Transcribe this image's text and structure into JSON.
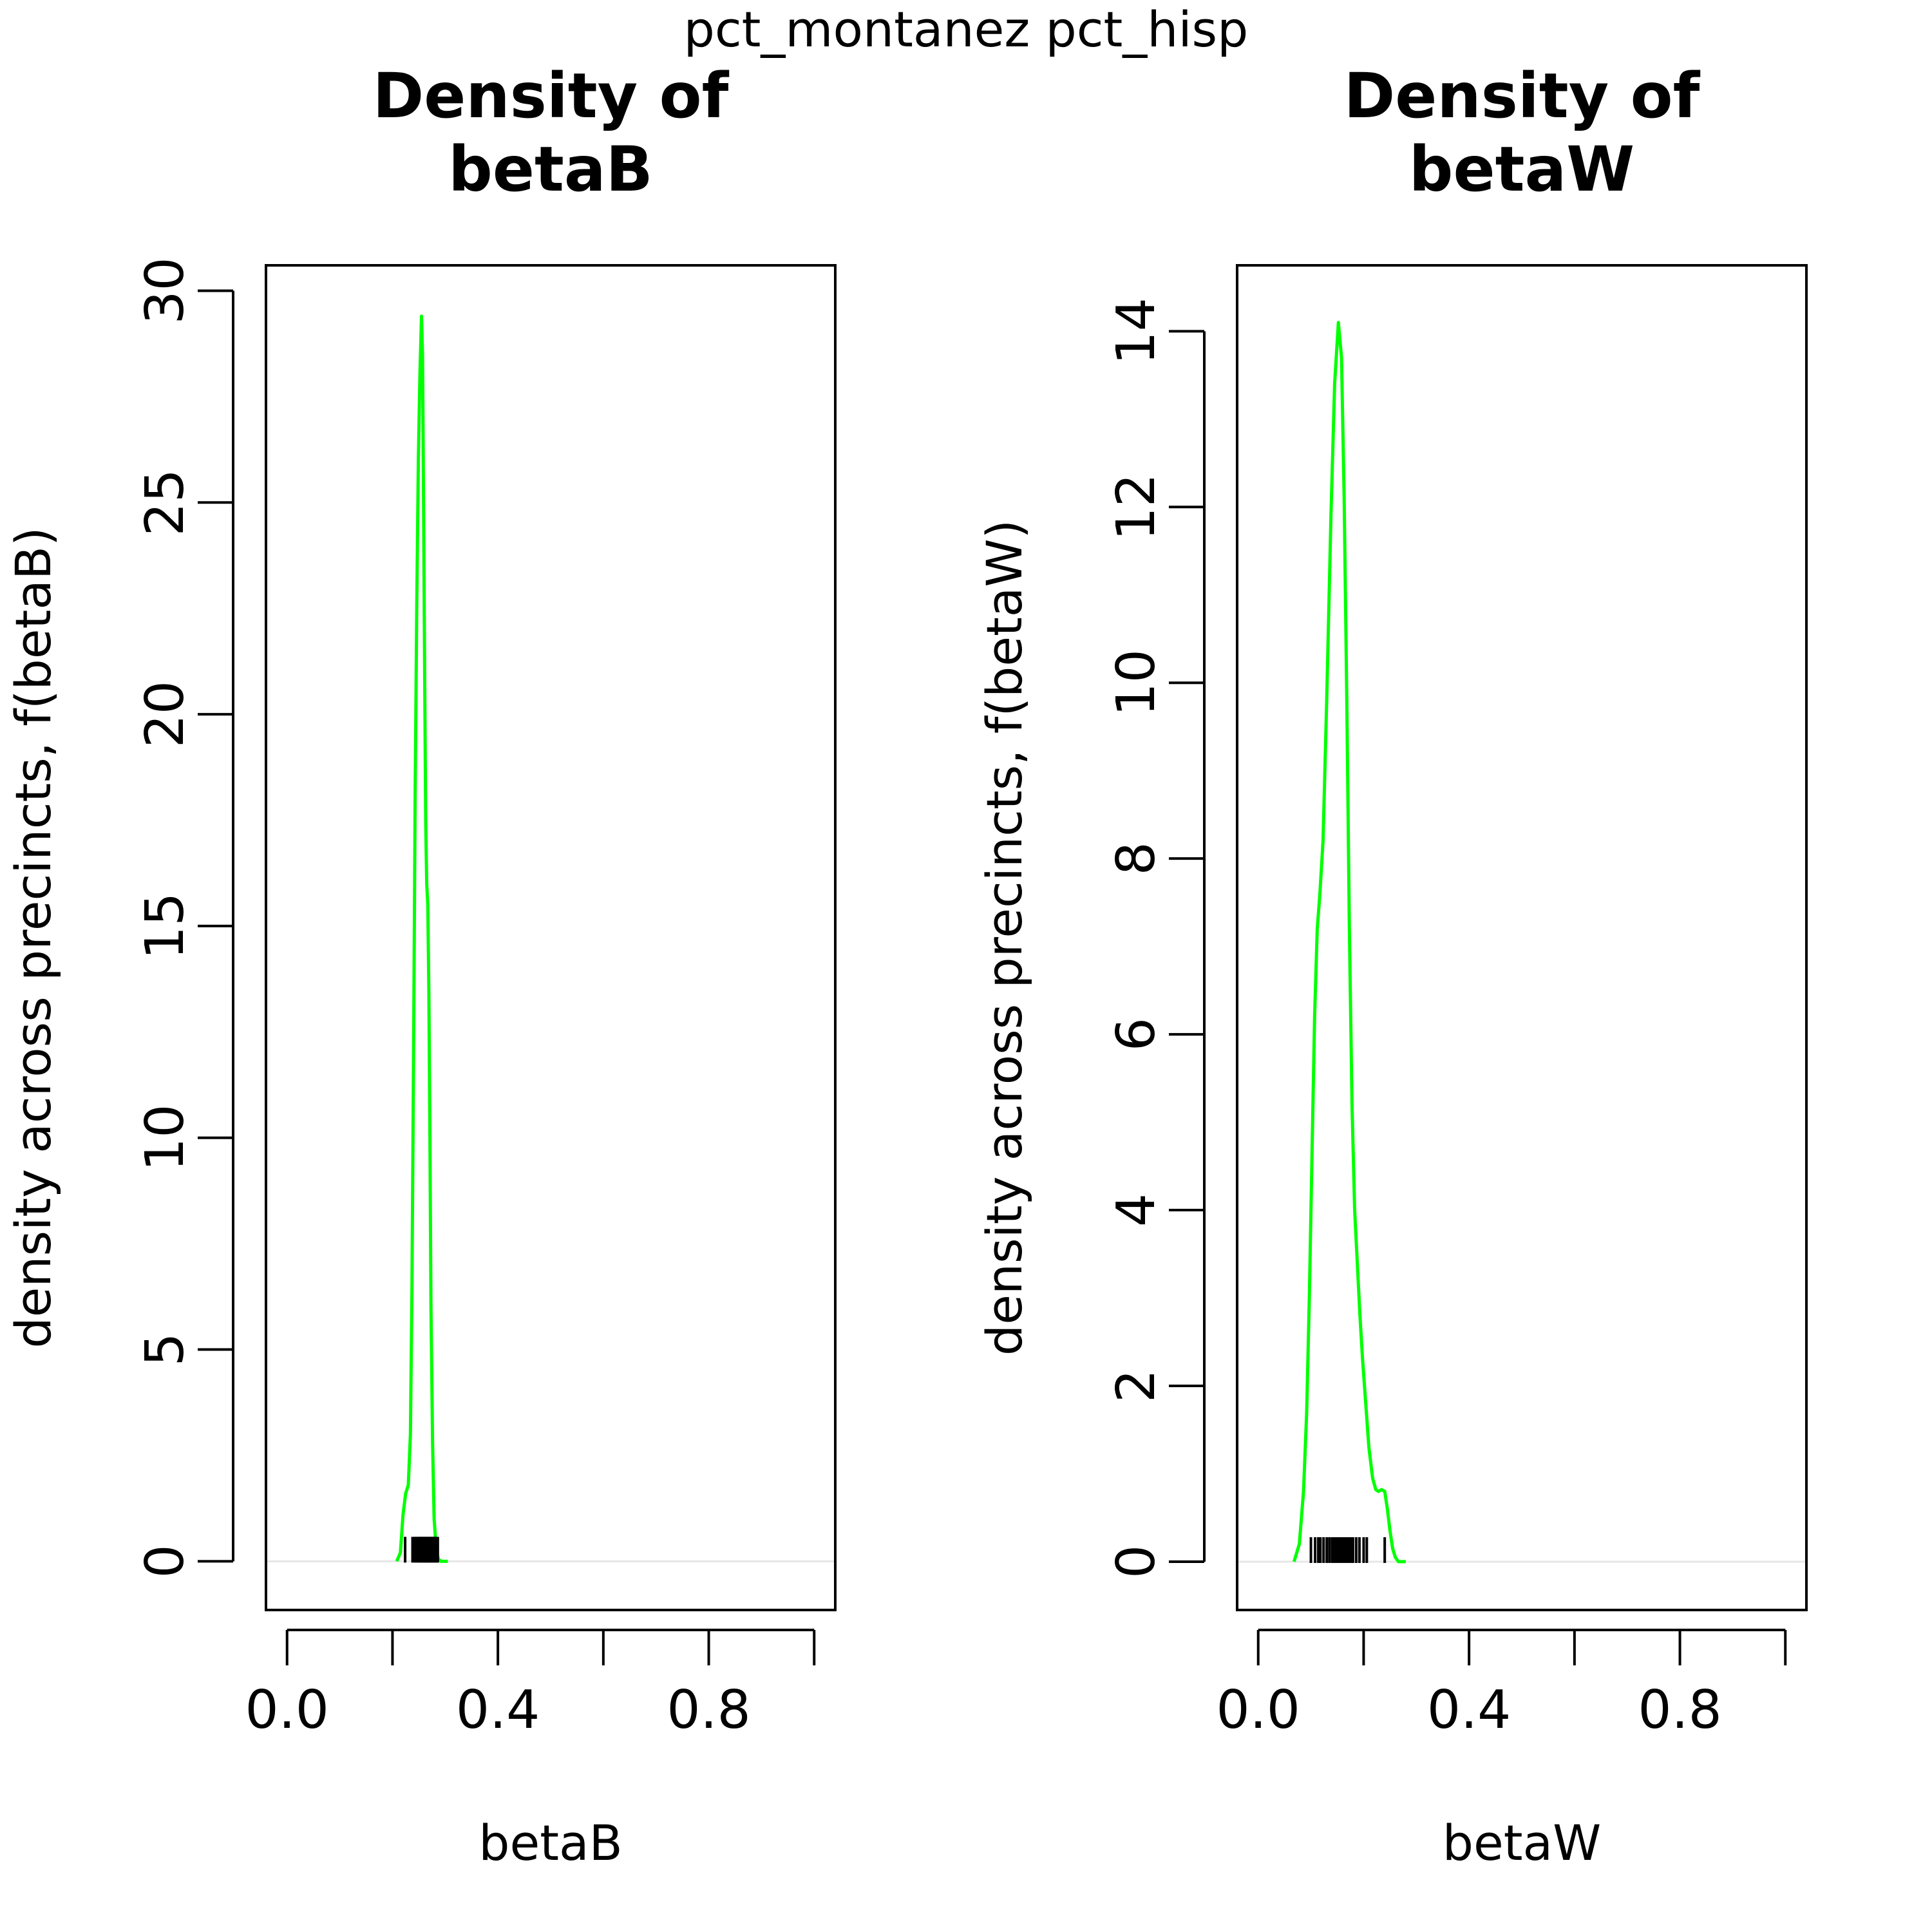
{
  "suptitle": "pct_montanez pct_hisp",
  "colors": {
    "curve": "#00ff00",
    "axis": "#000000",
    "zero_line": "#e6e6e6",
    "background": "#ffffff"
  },
  "chart_data": [
    {
      "type": "line",
      "title_line1": "Density of",
      "title_line2": "betaB",
      "xlabel": "betaB",
      "ylabel": "density across precincts, f(betaB)",
      "xlim": [
        -0.04,
        1.04
      ],
      "ylim": [
        -1.15,
        30.6
      ],
      "xticks": [
        0,
        0.2,
        0.4,
        0.6,
        0.8,
        1.0
      ],
      "xtick_labels": [
        "0.0",
        "0.4",
        "0.8"
      ],
      "xtick_label_values": [
        0,
        0.4,
        0.8
      ],
      "yticks": [
        0,
        5,
        10,
        15,
        20,
        25,
        30
      ],
      "ytick_labels": [
        "0",
        "5",
        "10",
        "15",
        "20",
        "25",
        "30"
      ],
      "grid": false,
      "series": [
        {
          "x": [
            0.208,
            0.215,
            0.22,
            0.225,
            0.23,
            0.234,
            0.237,
            0.24,
            0.243,
            0.246,
            0.249,
            0.252,
            0.255,
            0.257,
            0.259,
            0.261,
            0.263,
            0.265,
            0.267,
            0.269,
            0.271,
            0.273,
            0.276,
            0.279,
            0.283,
            0.287,
            0.292,
            0.298,
            0.305
          ],
          "y": [
            0.0,
            0.2,
            1.1,
            1.6,
            1.8,
            3.0,
            6.5,
            12.0,
            18.0,
            22.5,
            26.0,
            28.0,
            29.4,
            28.5,
            25.0,
            21.0,
            17.5,
            16.0,
            15.5,
            13.5,
            10.0,
            6.0,
            2.8,
            1.0,
            0.3,
            0.05,
            0.0,
            0.0,
            0.0
          ]
        }
      ],
      "rug": [
        0.224,
        0.238,
        0.242,
        0.245,
        0.248,
        0.25,
        0.252,
        0.254,
        0.256,
        0.258,
        0.26,
        0.262,
        0.264,
        0.266,
        0.268,
        0.27,
        0.272,
        0.274,
        0.276,
        0.278,
        0.28,
        0.282,
        0.284,
        0.286
      ]
    },
    {
      "type": "line",
      "title_line1": "Density of",
      "title_line2": "betaW",
      "xlabel": "betaW",
      "ylabel": "density across precincts, f(betaW)",
      "xlim": [
        -0.04,
        1.04
      ],
      "ylim": [
        -0.55,
        14.75
      ],
      "xticks": [
        0,
        0.2,
        0.4,
        0.6,
        0.8,
        1.0
      ],
      "xtick_labels": [
        "0.0",
        "0.4",
        "0.8"
      ],
      "xtick_label_values": [
        0,
        0.4,
        0.8
      ],
      "yticks": [
        0,
        2,
        4,
        6,
        8,
        10,
        12,
        14
      ],
      "ytick_labels": [
        "0",
        "2",
        "4",
        "6",
        "8",
        "10",
        "12",
        "14"
      ],
      "grid": false,
      "series": [
        {
          "x": [
            0.068,
            0.078,
            0.086,
            0.092,
            0.097,
            0.102,
            0.107,
            0.112,
            0.117,
            0.123,
            0.13,
            0.138,
            0.145,
            0.152,
            0.158,
            0.163,
            0.168,
            0.173,
            0.178,
            0.183,
            0.188,
            0.193,
            0.198,
            0.204,
            0.21,
            0.217,
            0.223,
            0.228,
            0.234,
            0.24,
            0.245,
            0.25,
            0.255,
            0.26,
            0.266,
            0.272,
            0.28
          ],
          "y": [
            0.0,
            0.2,
            0.8,
            1.7,
            3.0,
            4.6,
            6.2,
            7.2,
            7.6,
            8.2,
            9.8,
            11.9,
            13.4,
            14.1,
            13.7,
            12.1,
            9.8,
            7.2,
            5.2,
            4.0,
            3.4,
            2.8,
            2.3,
            1.8,
            1.3,
            0.95,
            0.82,
            0.8,
            0.82,
            0.8,
            0.6,
            0.35,
            0.15,
            0.05,
            0.0,
            0.0,
            0.0
          ]
        }
      ],
      "rug": [
        0.1,
        0.108,
        0.114,
        0.118,
        0.124,
        0.13,
        0.135,
        0.14,
        0.144,
        0.148,
        0.152,
        0.156,
        0.16,
        0.164,
        0.168,
        0.172,
        0.176,
        0.18,
        0.186,
        0.192,
        0.2,
        0.206,
        0.24
      ]
    }
  ]
}
